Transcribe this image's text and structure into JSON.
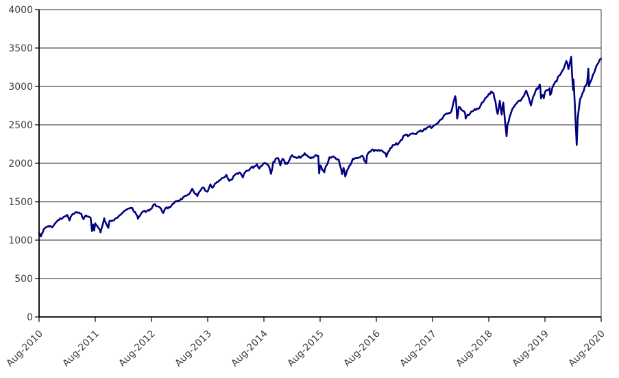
{
  "chart_data": {
    "type": "line",
    "title": "",
    "xlabel": "",
    "ylabel": "",
    "legend": "none",
    "grid": "horizontal",
    "ylim": [
      0,
      4000
    ],
    "x_range_months": 120,
    "y_tick_values": [
      0,
      500,
      1000,
      1500,
      2000,
      2500,
      3000,
      3500,
      4000
    ],
    "x_tick_labels": [
      "Aug-2010",
      "Aug-2011",
      "Aug-2012",
      "Aug-2013",
      "Aug-2014",
      "Aug-2015",
      "Aug-2016",
      "Aug-2017",
      "Aug-2018",
      "Aug-2019",
      "Aug-2020"
    ],
    "colors": {
      "series": "#000080",
      "gridline": "#262626",
      "axis": "#000000",
      "plot_border": "#404040",
      "labels": "#3d3d3d",
      "background": "#ffffff"
    },
    "series": [
      {
        "color": "#000080",
        "points_format": "[months_since_Aug2010, index_value]",
        "points": [
          [
            0,
            1095
          ],
          [
            0.4,
            1049
          ],
          [
            1,
            1141
          ],
          [
            2,
            1183
          ],
          [
            2.6,
            1173
          ],
          [
            3,
            1181
          ],
          [
            4,
            1258
          ],
          [
            5,
            1286
          ],
          [
            6,
            1327
          ],
          [
            6.5,
            1256
          ],
          [
            7,
            1326
          ],
          [
            8,
            1364
          ],
          [
            9,
            1345
          ],
          [
            9.5,
            1271
          ],
          [
            10,
            1321
          ],
          [
            11,
            1292
          ],
          [
            11.3,
            1119
          ],
          [
            11.55,
            1204
          ],
          [
            11.75,
            1124
          ],
          [
            12,
            1219
          ],
          [
            12.6,
            1162
          ],
          [
            13,
            1131
          ],
          [
            13.1,
            1099
          ],
          [
            13.9,
            1285
          ],
          [
            14,
            1253
          ],
          [
            14.8,
            1159
          ],
          [
            15,
            1247
          ],
          [
            16,
            1258
          ],
          [
            17,
            1312
          ],
          [
            18,
            1366
          ],
          [
            19,
            1408
          ],
          [
            19.9,
            1419
          ],
          [
            20,
            1398
          ],
          [
            21,
            1310
          ],
          [
            21.1,
            1278
          ],
          [
            22,
            1362
          ],
          [
            23,
            1379
          ],
          [
            24,
            1407
          ],
          [
            24.5,
            1466
          ],
          [
            25,
            1441
          ],
          [
            26,
            1412
          ],
          [
            26.5,
            1353
          ],
          [
            27,
            1416
          ],
          [
            28,
            1426
          ],
          [
            29,
            1498
          ],
          [
            30,
            1515
          ],
          [
            31,
            1569
          ],
          [
            32,
            1598
          ],
          [
            32.7,
            1669
          ],
          [
            33,
            1631
          ],
          [
            33.8,
            1573
          ],
          [
            34,
            1606
          ],
          [
            35,
            1686
          ],
          [
            35.9,
            1630
          ],
          [
            36,
            1633
          ],
          [
            36.6,
            1726
          ],
          [
            37,
            1682
          ],
          [
            38,
            1757
          ],
          [
            39,
            1806
          ],
          [
            40,
            1848
          ],
          [
            40.6,
            1771
          ],
          [
            41,
            1783
          ],
          [
            42,
            1859
          ],
          [
            43,
            1872
          ],
          [
            43.5,
            1815
          ],
          [
            44,
            1884
          ],
          [
            45,
            1924
          ],
          [
            46,
            1960
          ],
          [
            46.5,
            1985
          ],
          [
            47,
            1931
          ],
          [
            48,
            2003
          ],
          [
            49,
            1972
          ],
          [
            49.5,
            1862
          ],
          [
            50,
            2018
          ],
          [
            51,
            2068
          ],
          [
            51.5,
            1972
          ],
          [
            52,
            2059
          ],
          [
            52.6,
            1992
          ],
          [
            53,
            1995
          ],
          [
            54,
            2105
          ],
          [
            55,
            2068
          ],
          [
            56,
            2086
          ],
          [
            56.7,
            2131
          ],
          [
            57,
            2107
          ],
          [
            58,
            2063
          ],
          [
            59,
            2104
          ],
          [
            59.6,
            2096
          ],
          [
            59.8,
            1867
          ],
          [
            60,
            1972
          ],
          [
            60.9,
            1882
          ],
          [
            61,
            1920
          ],
          [
            62,
            2079
          ],
          [
            63,
            2080
          ],
          [
            64,
            2044
          ],
          [
            64.7,
            1859
          ],
          [
            65,
            1940
          ],
          [
            65.35,
            1829
          ],
          [
            66,
            1932
          ],
          [
            67,
            2060
          ],
          [
            68,
            2065
          ],
          [
            69,
            2097
          ],
          [
            69.85,
            2001
          ],
          [
            70,
            2099
          ],
          [
            71,
            2174
          ],
          [
            72,
            2171
          ],
          [
            73,
            2168
          ],
          [
            74,
            2126
          ],
          [
            74.15,
            2085
          ],
          [
            75,
            2199
          ],
          [
            76,
            2239
          ],
          [
            77,
            2279
          ],
          [
            78,
            2364
          ],
          [
            79,
            2363
          ],
          [
            80,
            2384
          ],
          [
            81,
            2412
          ],
          [
            82,
            2423
          ],
          [
            83,
            2470
          ],
          [
            84,
            2472
          ],
          [
            85,
            2519
          ],
          [
            86,
            2575
          ],
          [
            87,
            2648
          ],
          [
            88,
            2674
          ],
          [
            88.85,
            2872
          ],
          [
            89,
            2824
          ],
          [
            89.25,
            2581
          ],
          [
            89.6,
            2732
          ],
          [
            90,
            2714
          ],
          [
            91,
            2641
          ],
          [
            91.05,
            2582
          ],
          [
            92,
            2648
          ],
          [
            93,
            2705
          ],
          [
            94,
            2718
          ],
          [
            95,
            2816
          ],
          [
            96,
            2902
          ],
          [
            96.65,
            2931
          ],
          [
            97,
            2914
          ],
          [
            97.9,
            2641
          ],
          [
            98.35,
            2813
          ],
          [
            98.75,
            2633
          ],
          [
            99,
            2760
          ],
          [
            99.1,
            2790
          ],
          [
            99.8,
            2351
          ],
          [
            100,
            2507
          ],
          [
            101,
            2704
          ],
          [
            102,
            2784
          ],
          [
            103,
            2834
          ],
          [
            104,
            2946
          ],
          [
            105,
            2752
          ],
          [
            106,
            2942
          ],
          [
            106.9,
            3026
          ],
          [
            107,
            2980
          ],
          [
            107.15,
            2845
          ],
          [
            107.5,
            2889
          ],
          [
            107.75,
            2847
          ],
          [
            108,
            2926
          ],
          [
            109,
            2977
          ],
          [
            109.1,
            2888
          ],
          [
            110,
            3038
          ],
          [
            111,
            3141
          ],
          [
            112,
            3231
          ],
          [
            112.55,
            3330
          ],
          [
            113,
            3226
          ],
          [
            113.6,
            3386
          ],
          [
            114,
            2954
          ],
          [
            114.1,
            3090
          ],
          [
            114.4,
            2741
          ],
          [
            114.77,
            2237
          ],
          [
            115,
            2585
          ],
          [
            115.5,
            2837
          ],
          [
            116,
            2912
          ],
          [
            117,
            3044
          ],
          [
            117.27,
            3232
          ],
          [
            117.4,
            3002
          ],
          [
            118,
            3100
          ],
          [
            119,
            3271
          ],
          [
            119.4,
            3306
          ],
          [
            119.7,
            3349
          ],
          [
            120,
            3363
          ]
        ]
      }
    ]
  }
}
